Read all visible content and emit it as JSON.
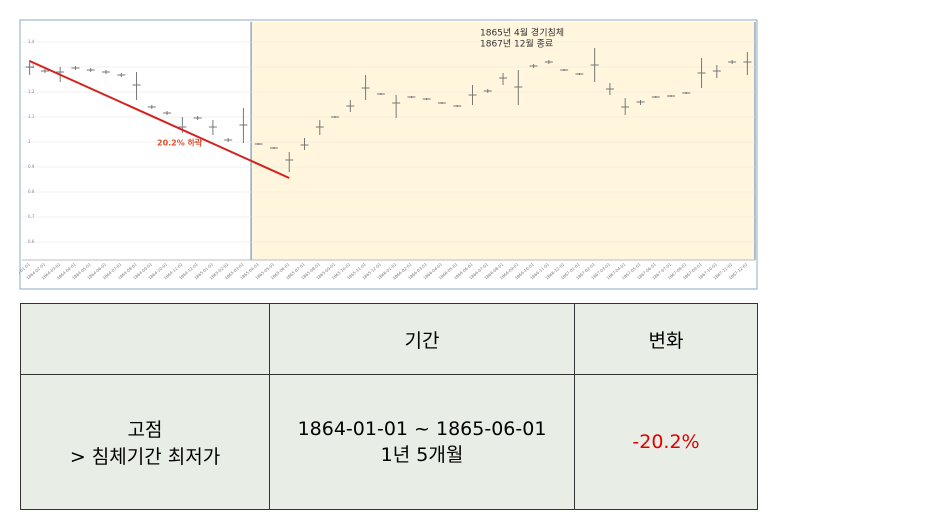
{
  "chart_data": {
    "type": "ohlc",
    "categories": [
      "1864-01-01",
      "1864-02-01",
      "1864-03-01",
      "1864-04-01",
      "1864-05-01",
      "1864-06-01",
      "1864-07-01",
      "1864-08-01",
      "1864-09-01",
      "1864-10-01",
      "1864-11-01",
      "1864-12-01",
      "1865-01-01",
      "1865-02-01",
      "1865-03-01",
      "1865-04-01",
      "1865-05-01",
      "1865-06-01",
      "1865-07-01",
      "1865-08-01",
      "1865-09-01",
      "1865-10-01",
      "1865-11-01",
      "1865-12-01",
      "1866-01-01",
      "1866-02-01",
      "1866-03-01",
      "1866-04-01",
      "1866-05-01",
      "1866-06-01",
      "1866-07-01",
      "1866-08-01",
      "1866-09-01",
      "1866-10-01",
      "1866-11-01",
      "1866-12-01",
      "1867-01-01",
      "1867-02-01",
      "1867-03-01",
      "1867-04-01",
      "1867-05-01",
      "1867-06-01",
      "1867-07-01",
      "1867-08-01",
      "1867-09-01",
      "1867-10-01",
      "1867-11-01",
      "1867-12-01"
    ],
    "high": [
      1.328,
      1.292,
      1.3,
      1.304,
      1.296,
      1.288,
      1.276,
      1.28,
      1.148,
      1.124,
      1.1,
      1.104,
      1.088,
      1.016,
      1.136,
      0.996,
      0.98,
      0.96,
      1.016,
      1.088,
      1.104,
      1.168,
      1.268,
      1.196,
      1.188,
      1.184,
      1.176,
      1.16,
      1.148,
      1.228,
      1.212,
      1.276,
      1.288,
      1.312,
      1.328,
      1.292,
      1.276,
      1.376,
      1.236,
      1.176,
      1.168,
      1.184,
      1.188,
      1.2,
      1.336,
      1.308,
      1.328,
      1.36
    ],
    "low": [
      1.268,
      1.276,
      1.24,
      1.288,
      1.28,
      1.272,
      1.26,
      1.168,
      1.132,
      1.108,
      1.036,
      1.088,
      1.028,
      1.0,
      0.996,
      0.988,
      0.972,
      0.88,
      0.968,
      1.028,
      1.096,
      1.12,
      1.168,
      1.188,
      1.096,
      1.176,
      1.168,
      1.152,
      1.14,
      1.148,
      1.196,
      1.228,
      1.148,
      1.296,
      1.312,
      1.284,
      1.268,
      1.24,
      1.188,
      1.108,
      1.148,
      1.176,
      1.18,
      1.192,
      1.216,
      1.256,
      1.312,
      1.268
    ],
    "close": [
      1.3,
      1.284,
      1.28,
      1.296,
      1.288,
      1.28,
      1.268,
      1.228,
      1.14,
      1.116,
      1.06,
      1.096,
      1.06,
      1.008,
      1.068,
      0.992,
      0.976,
      0.928,
      0.988,
      1.06,
      1.1,
      1.144,
      1.216,
      1.192,
      1.156,
      1.18,
      1.172,
      1.156,
      1.144,
      1.188,
      1.204,
      1.256,
      1.22,
      1.304,
      1.32,
      1.288,
      1.272,
      1.308,
      1.212,
      1.14,
      1.16,
      1.18,
      1.184,
      1.196,
      1.276,
      1.284,
      1.32,
      1.32
    ],
    "color": "#777777",
    "ylim": [
      0.528,
      1.48
    ],
    "yticks": [
      0.6,
      0.7,
      0.8,
      0.9,
      1,
      1.1,
      1.2,
      1.3,
      1.4
    ],
    "grid": true,
    "shaded_range": [
      "1865-04-01",
      "1867-12-01"
    ],
    "shade_color": "#fff6dd",
    "annotations": {
      "shade": [
        "1865년 4월 경기침체",
        "1867년 12월 종료"
      ],
      "trend": "20.2% 하락"
    }
  },
  "table": {
    "header": [
      "기간",
      "변화"
    ],
    "row": {
      "label": [
        "고점",
        "> 침체기간 최저가"
      ],
      "period": [
        "1864-01-01 ~ 1865-06-01",
        "1년 5개월"
      ],
      "change": "-20.2%"
    }
  }
}
